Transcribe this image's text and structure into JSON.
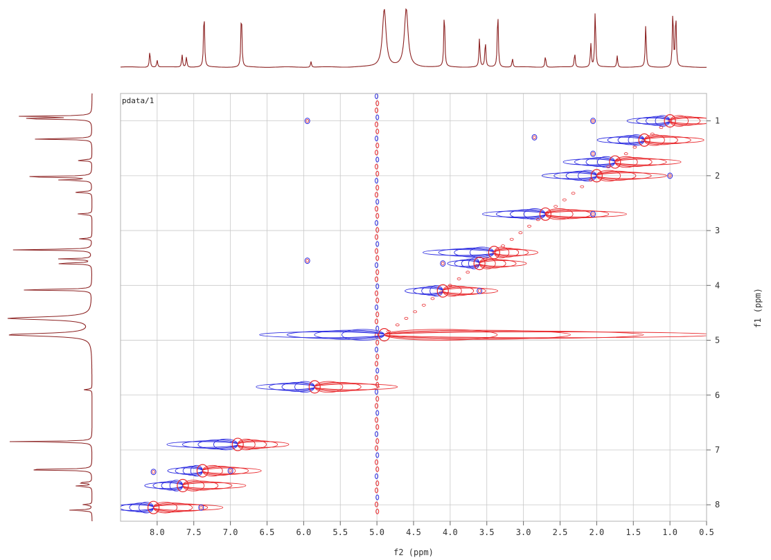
{
  "chart_data": {
    "type": "contour",
    "title": "",
    "annotation": "pdata/1",
    "xlabel": "f2 (ppm)",
    "ylabel": "f1 (ppm)",
    "xlim": [
      8.5,
      0.5
    ],
    "ylim": [
      0.5,
      8.3
    ],
    "x_ticks": [
      8.0,
      7.5,
      7.0,
      6.5,
      6.0,
      5.5,
      5.0,
      4.5,
      4.0,
      3.5,
      3.0,
      2.5,
      2.0,
      1.5,
      1.0,
      0.5
    ],
    "y_ticks": [
      1,
      2,
      3,
      4,
      5,
      6,
      7,
      8
    ],
    "grid": true,
    "colors": {
      "positive": "#e8262a",
      "negative": "#2a2ae0",
      "projection": "#8b2020",
      "grid": "#c8c8c8"
    },
    "projection_peaks": [
      {
        "ppm": 8.1,
        "height": 0.28
      },
      {
        "ppm": 8.0,
        "height": 0.12
      },
      {
        "ppm": 7.66,
        "height": 0.22
      },
      {
        "ppm": 7.6,
        "height": 0.18
      },
      {
        "ppm": 7.36,
        "height": 1.0
      },
      {
        "ppm": 6.85,
        "height": 1.0
      },
      {
        "ppm": 5.9,
        "height": 0.1
      },
      {
        "ppm": 4.9,
        "height": 1.0
      },
      {
        "ppm": 4.6,
        "height": 1.0
      },
      {
        "ppm": 4.08,
        "height": 1.0
      },
      {
        "ppm": 3.6,
        "height": 0.5
      },
      {
        "ppm": 3.52,
        "height": 0.45
      },
      {
        "ppm": 3.35,
        "height": 1.0
      },
      {
        "ppm": 3.15,
        "height": 0.15
      },
      {
        "ppm": 2.7,
        "height": 0.2
      },
      {
        "ppm": 2.3,
        "height": 0.25
      },
      {
        "ppm": 2.08,
        "height": 0.4
      },
      {
        "ppm": 2.02,
        "height": 1.0
      },
      {
        "ppm": 1.72,
        "height": 0.2
      },
      {
        "ppm": 1.33,
        "height": 0.75
      },
      {
        "ppm": 0.96,
        "height": 1.0
      },
      {
        "ppm": 0.92,
        "height": 0.95
      }
    ],
    "diagonal_peaks": [
      {
        "ppm": 1.0
      },
      {
        "ppm": 1.35
      },
      {
        "ppm": 1.75
      },
      {
        "ppm": 2.0
      },
      {
        "ppm": 2.7
      },
      {
        "ppm": 3.4
      },
      {
        "ppm": 3.6
      },
      {
        "ppm": 4.1
      },
      {
        "ppm": 4.9
      },
      {
        "ppm": 5.85
      },
      {
        "ppm": 6.9
      },
      {
        "ppm": 7.38
      },
      {
        "ppm": 7.65
      },
      {
        "ppm": 8.05
      }
    ],
    "cross_peaks": [
      {
        "x": 2.05,
        "y": 1.0
      },
      {
        "x": 1.0,
        "y": 2.0
      },
      {
        "x": 2.05,
        "y": 1.6
      },
      {
        "x": 2.05,
        "y": 2.7
      },
      {
        "x": 4.1,
        "y": 3.6
      },
      {
        "x": 3.6,
        "y": 4.1
      },
      {
        "x": 8.05,
        "y": 7.4
      },
      {
        "x": 7.4,
        "y": 8.05
      },
      {
        "x": 7.0,
        "y": 7.38
      },
      {
        "x": 5.95,
        "y": 3.55
      },
      {
        "x": 5.95,
        "y": 1.0
      },
      {
        "x": 2.85,
        "y": 1.3
      }
    ],
    "solvent_line_ppm": 5.0
  }
}
